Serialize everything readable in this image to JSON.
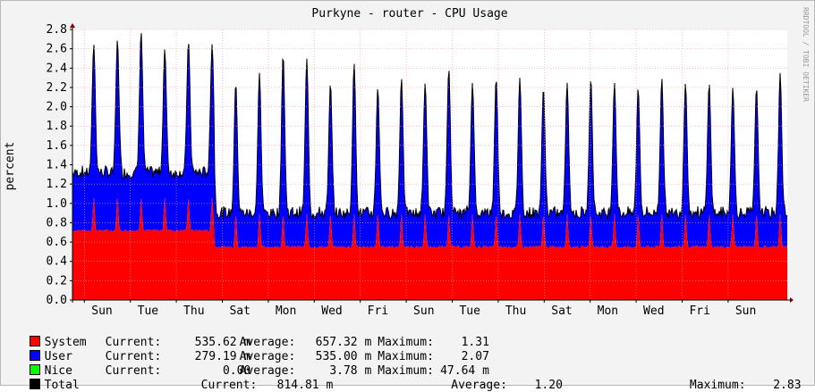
{
  "window_title": "Purkyne - router  - CPU Usage",
  "watermark": "RRDTOOL / TOBI OETIKER",
  "chart_data": {
    "type": "area",
    "title": "Purkyne - router  - CPU Usage",
    "ylabel": "percent",
    "xlabel": "",
    "ylim": [
      0,
      2.8
    ],
    "yticks": [
      "0.0",
      "0.2",
      "0.4",
      "0.6",
      "0.8",
      "1.0",
      "1.2",
      "1.4",
      "1.6",
      "1.8",
      "2.0",
      "2.2",
      "2.4",
      "2.6",
      "2.8"
    ],
    "categories": [
      "Sun",
      "Tue",
      "Thu",
      "Sat",
      "Mon",
      "Wed",
      "Fri",
      "Sun",
      "Tue",
      "Thu",
      "Sat",
      "Mon",
      "Wed",
      "Fri",
      "Sun"
    ],
    "stacked": true,
    "grid": true,
    "x_daily_peaks": {
      "days": [
        1,
        2,
        3,
        4,
        5,
        6,
        7,
        8,
        9,
        10,
        11,
        12,
        13,
        14,
        15,
        16,
        17,
        18,
        19,
        20,
        21,
        22,
        23,
        24,
        25,
        26,
        27,
        28,
        29,
        30
      ],
      "total_peak": [
        2.65,
        2.7,
        2.78,
        2.6,
        2.68,
        2.65,
        2.25,
        2.35,
        2.55,
        2.5,
        2.25,
        2.45,
        2.2,
        2.3,
        2.25,
        2.4,
        2.25,
        2.3,
        2.3,
        2.2,
        2.25,
        2.3,
        2.25,
        2.2,
        2.3,
        2.25,
        2.25,
        2.2,
        2.2,
        2.35
      ]
    },
    "series": [
      {
        "name": "System",
        "color": "#ff0000",
        "base": [
          0.72,
          0.72,
          0.72,
          0.72,
          0.72,
          0.72,
          0.55,
          0.55,
          0.55,
          0.55,
          0.55,
          0.55,
          0.55,
          0.55,
          0.55,
          0.55,
          0.55,
          0.55,
          0.55,
          0.55,
          0.55,
          0.55,
          0.55,
          0.55,
          0.55,
          0.55,
          0.55,
          0.55,
          0.55,
          0.55
        ],
        "current": "535.62 m",
        "average": "657.32 m",
        "maximum": "1.31"
      },
      {
        "name": "User",
        "color": "#0000ff",
        "base": [
          0.6,
          0.6,
          0.6,
          0.6,
          0.6,
          0.6,
          0.35,
          0.35,
          0.35,
          0.35,
          0.35,
          0.35,
          0.35,
          0.35,
          0.35,
          0.35,
          0.35,
          0.35,
          0.35,
          0.35,
          0.35,
          0.35,
          0.35,
          0.35,
          0.35,
          0.35,
          0.35,
          0.35,
          0.35,
          0.35
        ],
        "current": "279.19 m",
        "average": "535.00 m",
        "maximum": "2.07"
      },
      {
        "name": "Nice",
        "color": "#00ff00",
        "current": "0.00",
        "average": "3.78 m",
        "maximum": "47.64 m"
      },
      {
        "name": "Total",
        "color": "#000000",
        "current": "814.81 m",
        "average": "1.20",
        "maximum": "2.83"
      }
    ]
  },
  "legend": {
    "current_label": "Current:",
    "average_label": "Average:",
    "maximum_label": "Maximum:"
  }
}
